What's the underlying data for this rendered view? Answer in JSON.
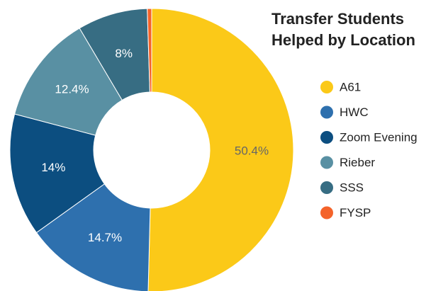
{
  "chart_data": {
    "type": "donut",
    "title": "Transfer Students Helped by Location",
    "categories": [
      "A61",
      "HWC",
      "Zoom Evening",
      "Rieber",
      "SSS",
      "FYSP"
    ],
    "values": [
      50.4,
      14.7,
      14,
      12.4,
      8,
      0.5
    ],
    "value_labels": [
      "50.4%",
      "14.7%",
      "14%",
      "12.4%",
      "8%",
      null
    ],
    "colors": [
      "#fbc918",
      "#2e70ae",
      "#0c4e80",
      "#5990a3",
      "#376d83",
      "#f4632a"
    ],
    "legend": "right"
  }
}
